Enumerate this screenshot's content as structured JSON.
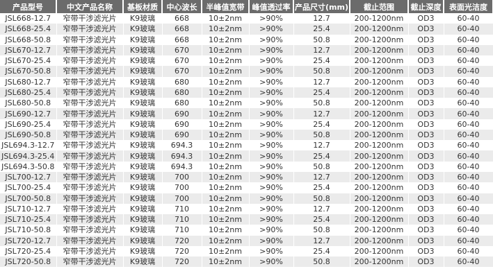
{
  "table": {
    "headers": [
      "产品型号",
      "中文产品名称",
      "基板材质",
      "中心波长",
      "半峰值宽带",
      "峰值透过率",
      "产品尺寸(mm)",
      "截止范围",
      "截止深度",
      "表面光洁度"
    ],
    "rows": [
      [
        "JSL668-12.7",
        "窄带干涉滤光片",
        "K9玻璃",
        "668",
        "10±2nm",
        ">90%",
        "12.7",
        "200-1200nm",
        "OD3",
        "60-40"
      ],
      [
        "JSL668-25.4",
        "窄带干涉滤光片",
        "K9玻璃",
        "668",
        "10±2nm",
        ">90%",
        "25.4",
        "200-1200nm",
        "OD3",
        "60-40"
      ],
      [
        "JSL668-50.8",
        "窄带干涉滤光片",
        "K9玻璃",
        "668",
        "10±2nm",
        ">90%",
        "50.8",
        "200-1200nm",
        "OD3",
        "60-40"
      ],
      [
        "JSL670-12.7",
        "窄带干涉滤光片",
        "K9玻璃",
        "670",
        "10±2nm",
        ">90%",
        "12.7",
        "200-1200nm",
        "OD3",
        "60-40"
      ],
      [
        "JSL670-25.4",
        "窄带干涉滤光片",
        "K9玻璃",
        "670",
        "10±2nm",
        ">90%",
        "25.4",
        "200-1200nm",
        "OD3",
        "60-40"
      ],
      [
        "JSL670-50.8",
        "窄带干涉滤光片",
        "K9玻璃",
        "670",
        "10±2nm",
        ">90%",
        "50.8",
        "200-1200nm",
        "OD3",
        "60-40"
      ],
      [
        "JSL680-12.7",
        "窄带干涉滤光片",
        "K9玻璃",
        "680",
        "10±2nm",
        ">90%",
        "12.7",
        "200-1200nm",
        "OD3",
        "60-40"
      ],
      [
        "JSL680-25.4",
        "窄带干涉滤光片",
        "K9玻璃",
        "680",
        "10±2nm",
        ">90%",
        "25.4",
        "200-1200nm",
        "OD3",
        "60-40"
      ],
      [
        "JSL680-50.8",
        "窄带干涉滤光片",
        "K9玻璃",
        "680",
        "10±2nm",
        ">90%",
        "50.8",
        "200-1200nm",
        "OD3",
        "60-40"
      ],
      [
        "JSL690-12.7",
        "窄带干涉滤光片",
        "K9玻璃",
        "690",
        "10±2nm",
        ">90%",
        "12.7",
        "200-1200nm",
        "OD3",
        "60-40"
      ],
      [
        "JSL690-25.4",
        "窄带干涉滤光片",
        "K9玻璃",
        "690",
        "10±2nm",
        ">90%",
        "25.4",
        "200-1200nm",
        "OD3",
        "60-40"
      ],
      [
        "JSL690-50.8",
        "窄带干涉滤光片",
        "K9玻璃",
        "690",
        "10±2nm",
        ">90%",
        "50.8",
        "200-1200nm",
        "OD3",
        "60-40"
      ],
      [
        "JSL694.3-12.7",
        "窄带干涉滤光片",
        "K9玻璃",
        "694.3",
        "10±2nm",
        ">90%",
        "12.7",
        "200-1200nm",
        "OD3",
        "60-40"
      ],
      [
        "JSL694.3-25.4",
        "窄带干涉滤光片",
        "K9玻璃",
        "694.3",
        "10±2nm",
        ">90%",
        "25.4",
        "200-1200nm",
        "OD3",
        "60-40"
      ],
      [
        "JSL694.3-50.8",
        "窄带干涉滤光片",
        "K9玻璃",
        "694.3",
        "10±2nm",
        ">90%",
        "50.8",
        "200-1200nm",
        "OD3",
        "60-40"
      ],
      [
        "JSL700-12.7",
        "窄带干涉滤光片",
        "K9玻璃",
        "700",
        "10±2nm",
        ">90%",
        "12.7",
        "200-1200nm",
        "OD3",
        "60-40"
      ],
      [
        "JSL700-25.4",
        "窄带干涉滤光片",
        "K9玻璃",
        "700",
        "10±2nm",
        ">90%",
        "25.4",
        "200-1200nm",
        "OD3",
        "60-40"
      ],
      [
        "JSL700-50.8",
        "窄带干涉滤光片",
        "K9玻璃",
        "700",
        "10±2nm",
        ">90%",
        "50.8",
        "200-1200nm",
        "OD3",
        "60-40"
      ],
      [
        "JSL710-12.7",
        "窄带干涉滤光片",
        "K9玻璃",
        "710",
        "10±2nm",
        ">90%",
        "12.7",
        "200-1200nm",
        "OD3",
        "60-40"
      ],
      [
        "JSL710-25.4",
        "窄带干涉滤光片",
        "K9玻璃",
        "710",
        "10±2nm",
        ">90%",
        "25.4",
        "200-1200nm",
        "OD3",
        "60-40"
      ],
      [
        "JSL710-50.8",
        "窄带干涉滤光片",
        "K9玻璃",
        "710",
        "10±2nm",
        ">90%",
        "50.8",
        "200-1200nm",
        "OD3",
        "60-40"
      ],
      [
        "JSL720-12.7",
        "窄带干涉滤光片",
        "K9玻璃",
        "720",
        "10±2nm",
        ">90%",
        "12.7",
        "200-1200nm",
        "OD3",
        "60-40"
      ],
      [
        "JSL720-25.4",
        "窄带干涉滤光片",
        "K9玻璃",
        "720",
        "10±2nm",
        ">90%",
        "25.4",
        "200-1200nm",
        "OD3",
        "60-40"
      ],
      [
        "JSL720-50.8",
        "窄带干涉滤光片",
        "K9玻璃",
        "720",
        "10±2nm",
        ">90%",
        "50.8",
        "200-1200nm",
        "OD3",
        "60-40"
      ]
    ]
  },
  "colors": {
    "header_bg": "#6b6b6b",
    "alt_row_bg": "#ebebeb",
    "text": "#333333"
  }
}
